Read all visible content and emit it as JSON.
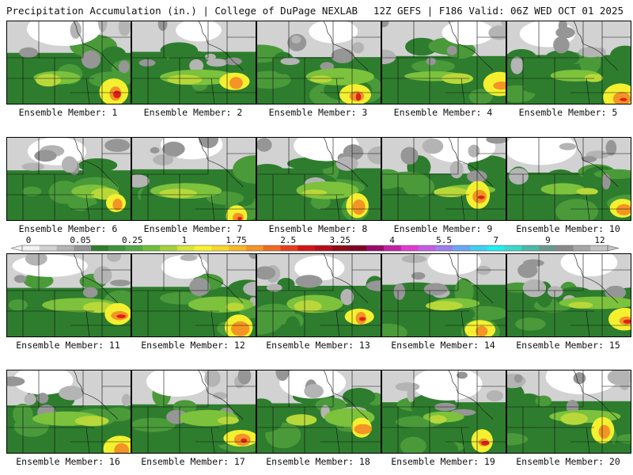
{
  "header": {
    "left": "Precipitation Accumulation (in.) | College of DuPage NEXLAB",
    "right": "12Z GEFS | F186 Valid: 06Z WED OCT 01 2025"
  },
  "member_label_prefix": "Ensemble Member: ",
  "members": [
    "1",
    "2",
    "3",
    "4",
    "5",
    "6",
    "7",
    "8",
    "9",
    "10",
    "11",
    "12",
    "13",
    "14",
    "15",
    "16",
    "17",
    "18",
    "19",
    "20"
  ],
  "colorbar": {
    "tick_labels": [
      "0",
      "0.05",
      "0.25",
      "1",
      "1.75",
      "2.5",
      "3.25",
      "4",
      "5.5",
      "7",
      "9",
      "12"
    ],
    "colors": [
      "#f2f2f2",
      "#d2d2d2",
      "#b4b4b4",
      "#969696",
      "#2e7d2e",
      "#3d923a",
      "#54a844",
      "#72bd3c",
      "#a4d13a",
      "#d7e43a",
      "#f6f330",
      "#f8d62c",
      "#f7b728",
      "#f39424",
      "#ee6c1f",
      "#e63d1b",
      "#d21616",
      "#b20f1a",
      "#8e0b18",
      "#7a0624",
      "#9a0a6a",
      "#c41ea6",
      "#e23ad0",
      "#c65ce6",
      "#9e7ef0",
      "#6aa6f4",
      "#3cd0f4",
      "#20eef0",
      "#3bd8c8",
      "#4bb8a8",
      "#6a9890",
      "#8a8a8a",
      "#a6a6a6",
      "#c2c2c2"
    ]
  },
  "map_colors": {
    "trace": "#d2d2d2",
    "light_gray": "#b4b4b4",
    "gray": "#969696",
    "dark_green": "#2e7d2e",
    "green": "#4a9a3a",
    "light_green": "#7cc23c",
    "yellow_green": "#b8d83a",
    "yellow": "#f4f030",
    "orange": "#f39424",
    "red": "#e02018",
    "purple": "#8e1a8a"
  }
}
